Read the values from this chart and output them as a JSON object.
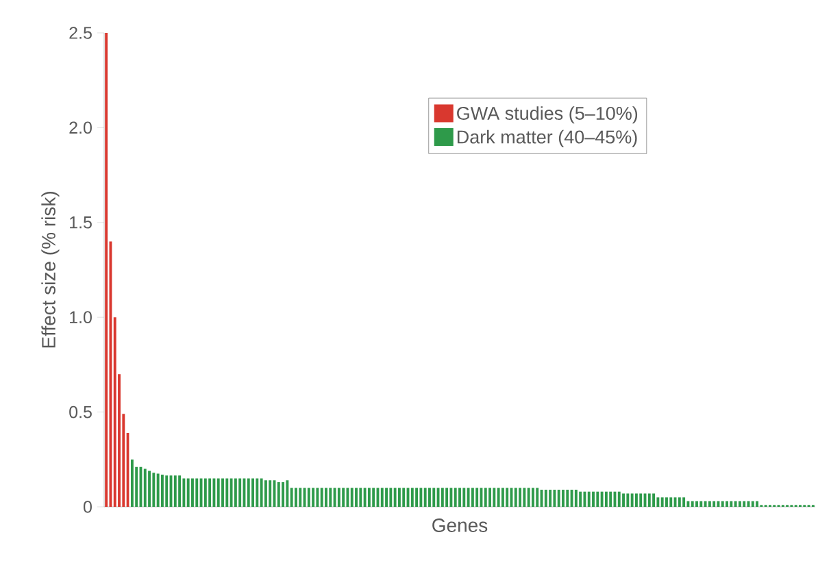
{
  "chart_data": {
    "type": "bar",
    "xlabel": "Genes",
    "ylabel": "Effect size (% risk)",
    "categories": [
      null,
      null,
      null,
      null,
      null,
      null,
      null,
      null,
      null,
      null,
      null,
      null,
      null,
      null,
      null,
      null,
      null,
      null,
      null,
      null,
      null,
      null,
      null,
      null,
      null,
      null,
      null,
      null,
      null,
      null,
      null,
      null,
      null,
      null,
      null,
      null,
      null,
      null,
      null,
      null,
      null,
      null,
      null,
      null,
      null,
      null,
      null,
      null,
      null,
      null,
      null,
      null,
      null,
      null,
      null,
      null,
      null,
      null,
      null,
      null,
      null,
      null,
      null,
      null,
      null,
      null,
      null,
      null,
      null,
      null,
      null,
      null,
      null,
      null,
      null,
      null,
      null,
      null,
      null,
      null,
      null,
      null,
      null,
      null,
      null,
      null,
      null,
      null,
      null,
      null,
      null,
      null,
      null,
      null,
      null,
      null,
      null,
      null,
      null,
      null,
      null,
      null,
      null,
      null,
      null,
      null,
      null,
      null,
      null,
      null,
      null,
      null,
      null,
      null,
      null,
      null,
      null,
      null,
      null,
      null,
      null,
      null,
      null,
      null,
      null,
      null,
      null,
      null,
      null,
      null,
      null,
      null,
      null,
      null,
      null,
      null,
      null,
      null,
      null,
      null,
      null,
      null,
      null,
      null,
      null,
      null,
      null,
      null,
      null,
      null,
      null,
      null,
      null,
      null,
      null,
      null,
      null,
      null,
      null,
      null,
      null,
      null,
      null,
      null,
      null
    ],
    "series": [
      {
        "name": "GWA studies (5–10%)",
        "color": "#d9382f",
        "values": [
          2.5,
          1.4,
          1.0,
          0.7,
          0.49,
          0.39,
          null,
          null,
          null,
          null,
          null,
          null,
          null,
          null,
          null,
          null,
          null,
          null,
          null,
          null,
          null,
          null,
          null,
          null,
          null,
          null,
          null,
          null,
          null,
          null,
          null,
          null,
          null,
          null,
          null,
          null,
          null,
          null,
          null,
          null,
          null,
          null,
          null,
          null,
          null,
          null,
          null,
          null,
          null,
          null,
          null,
          null,
          null,
          null,
          null,
          null,
          null,
          null,
          null,
          null,
          null,
          null,
          null,
          null,
          null,
          null,
          null,
          null,
          null,
          null,
          null,
          null,
          null,
          null,
          null,
          null,
          null,
          null,
          null,
          null,
          null,
          null,
          null,
          null,
          null,
          null,
          null,
          null,
          null,
          null,
          null,
          null,
          null,
          null,
          null,
          null,
          null,
          null,
          null,
          null,
          null,
          null,
          null,
          null,
          null,
          null,
          null,
          null,
          null,
          null,
          null,
          null,
          null,
          null,
          null,
          null,
          null,
          null,
          null,
          null,
          null,
          null,
          null,
          null,
          null,
          null,
          null,
          null,
          null,
          null,
          null,
          null,
          null,
          null,
          null,
          null,
          null,
          null,
          null,
          null,
          null,
          null,
          null,
          null,
          null,
          null,
          null,
          null,
          null,
          null,
          null,
          null,
          null,
          null,
          null,
          null,
          null,
          null,
          null,
          null,
          null,
          null,
          null,
          null,
          null
        ]
      },
      {
        "name": "Dark matter (40–45%)",
        "color": "#2e9a4a",
        "values": [
          null,
          null,
          null,
          null,
          null,
          null,
          0.25,
          0.21,
          0.21,
          0.2,
          0.19,
          0.18,
          0.175,
          0.17,
          0.165,
          0.165,
          0.165,
          0.165,
          0.15,
          0.15,
          0.15,
          0.15,
          0.15,
          0.15,
          0.15,
          0.15,
          0.15,
          0.15,
          0.15,
          0.15,
          0.15,
          0.15,
          0.15,
          0.15,
          0.15,
          0.15,
          0.15,
          0.14,
          0.14,
          0.14,
          0.13,
          0.13,
          0.14,
          0.1,
          0.1,
          0.1,
          0.1,
          0.1,
          0.1,
          0.1,
          0.1,
          0.1,
          0.1,
          0.1,
          0.1,
          0.1,
          0.1,
          0.1,
          0.1,
          0.1,
          0.1,
          0.1,
          0.1,
          0.1,
          0.1,
          0.1,
          0.1,
          0.1,
          0.1,
          0.1,
          0.1,
          0.1,
          0.1,
          0.1,
          0.1,
          0.1,
          0.1,
          0.1,
          0.1,
          0.1,
          0.1,
          0.1,
          0.1,
          0.1,
          0.1,
          0.1,
          0.1,
          0.1,
          0.1,
          0.1,
          0.1,
          0.1,
          0.1,
          0.1,
          0.1,
          0.1,
          0.1,
          0.1,
          0.1,
          0.1,
          0.1,
          0.09,
          0.09,
          0.09,
          0.09,
          0.09,
          0.09,
          0.09,
          0.09,
          0.09,
          0.08,
          0.08,
          0.08,
          0.08,
          0.08,
          0.08,
          0.08,
          0.08,
          0.08,
          0.08,
          0.07,
          0.07,
          0.07,
          0.07,
          0.07,
          0.07,
          0.07,
          0.07,
          0.05,
          0.05,
          0.05,
          0.05,
          0.05,
          0.05,
          0.05,
          0.03,
          0.03,
          0.03,
          0.03,
          0.03,
          0.03,
          0.03,
          0.03,
          0.03,
          0.03,
          0.03,
          0.03,
          0.03,
          0.03,
          0.03,
          0.03,
          0.03,
          0.01,
          0.01,
          0.01,
          0.01,
          0.01,
          0.01,
          0.01,
          0.01,
          0.01,
          0.01,
          0.01,
          0.01,
          0.01
        ]
      }
    ],
    "ylim": [
      0,
      2.5
    ],
    "yticks": [
      0,
      {
        "value": 0.5,
        "label": "0.5"
      },
      {
        "value": 1,
        "label": "1.0"
      },
      {
        "value": 1.5,
        "label": "1.5"
      },
      {
        "value": 2,
        "label": "2.0"
      },
      {
        "value": 2.5,
        "label": "2.5"
      }
    ],
    "legend": "top right"
  }
}
